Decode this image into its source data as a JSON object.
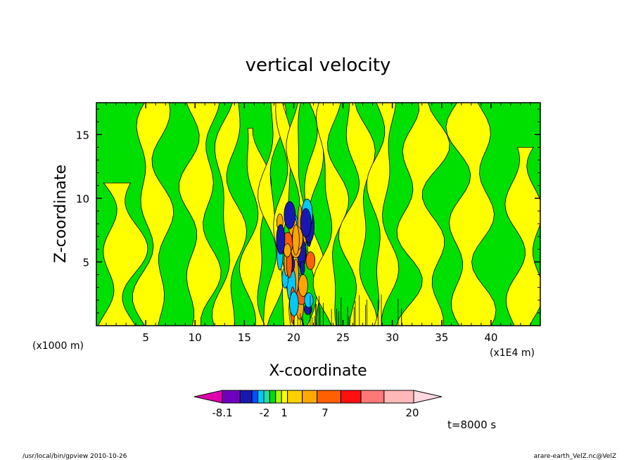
{
  "chart_data": {
    "type": "heatmap",
    "title": "vertical velocity",
    "xlabel": "X-coordinate",
    "ylabel": "Z-coordinate",
    "x_unit_label": "(x1000 m)",
    "x_unit_label_right": "(x1E4 m)",
    "xlim": [
      0,
      45
    ],
    "ylim": [
      0,
      17.5
    ],
    "x_ticks": [
      5,
      10,
      15,
      20,
      25,
      30,
      35,
      40
    ],
    "y_ticks": [
      5,
      10,
      15
    ],
    "x_tick_labels": [
      "5",
      "10",
      "15",
      "20",
      "25",
      "30",
      "35",
      "40"
    ],
    "y_tick_labels": [
      "5",
      "10",
      "15"
    ],
    "colorbar": {
      "levels_labels": [
        "-8.1",
        "-2",
        "1",
        "7",
        "20"
      ],
      "colors": [
        "#e000b0",
        "#7000c0",
        "#1818b0",
        "#0050ff",
        "#00c8ff",
        "#20e0a0",
        "#00e000",
        "#a8ff00",
        "#ffff00",
        "#ffd000",
        "#ffa800",
        "#ff6000",
        "#ff1010",
        "#ff7878",
        "#ffb8b8",
        "#ffd8e0"
      ]
    },
    "field_colors": {
      "negative": "#00e000",
      "slightly_positive": "#ffff00",
      "positive": "#ffa500",
      "strong_positive": "#ff6000",
      "negative_strong": "#00c8ff",
      "very_negative": "#1818b0"
    },
    "grid": false,
    "legend": "bottom"
  },
  "annotations": {
    "time": "t=8000 s",
    "footer_left": "/usr/local/bin/gpview   2010-10-26",
    "footer_right": "arare-earth_VelZ.nc@VelZ"
  }
}
